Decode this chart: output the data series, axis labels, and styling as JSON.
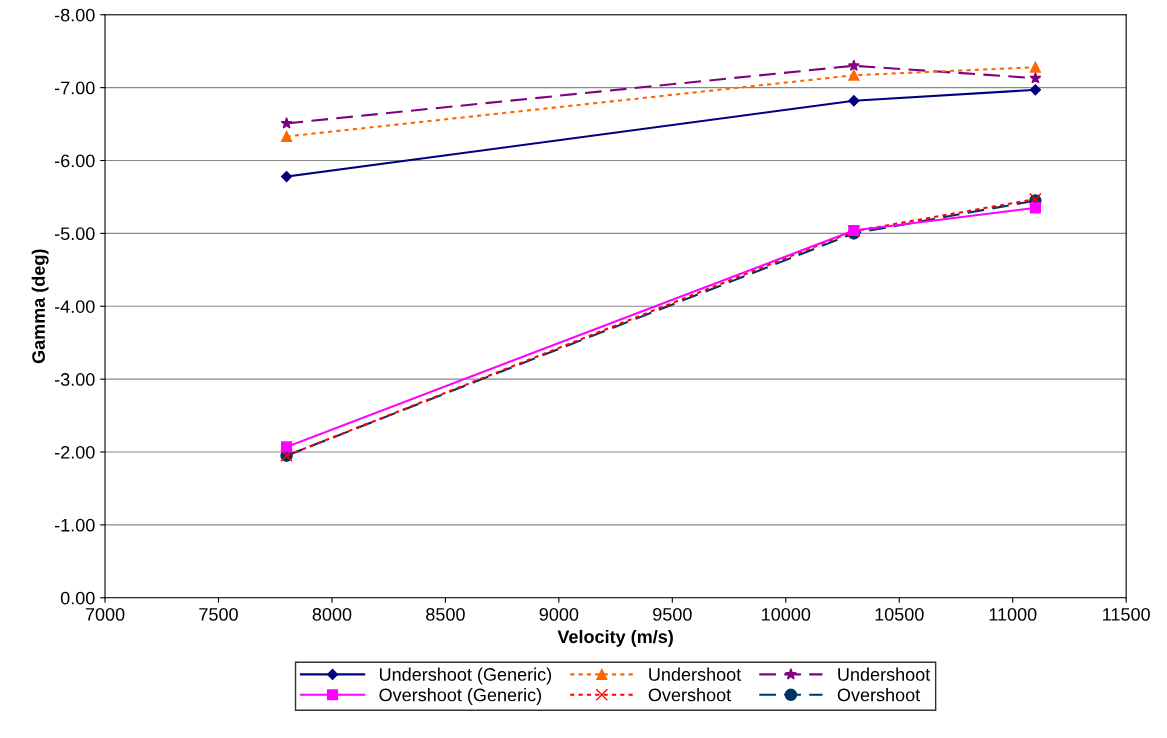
{
  "chart_data": {
    "type": "line",
    "xlabel": "Velocity (m/s)",
    "ylabel": "Gamma (deg)",
    "x": [
      7800,
      10300,
      11100
    ],
    "xlim": [
      7000,
      11500
    ],
    "xticks": [
      7000,
      7500,
      8000,
      8500,
      9000,
      9500,
      10000,
      10500,
      11000,
      11500
    ],
    "ylim": [
      0,
      -8
    ],
    "yticks": [
      {
        "value": 0,
        "label": "0.00"
      },
      {
        "value": -1,
        "label": "-1.00"
      },
      {
        "value": -2,
        "label": "-2.00"
      },
      {
        "value": -3,
        "label": "-3.00"
      },
      {
        "value": -4,
        "label": "-4.00"
      },
      {
        "value": -5,
        "label": "-5.00"
      },
      {
        "value": -6,
        "label": "-6.00"
      },
      {
        "value": -7,
        "label": "-7.00"
      },
      {
        "value": -8,
        "label": "-8.00"
      }
    ],
    "grid": "y",
    "legend": "bottom",
    "series": [
      {
        "name": "Undershoot (Generic)",
        "color": "#000080",
        "values": [
          -5.78,
          -6.82,
          -6.97
        ],
        "marker": "diamond",
        "line_style": "solid"
      },
      {
        "name": "Overshoot (Generic)",
        "color": "#ff00ff",
        "values": [
          -2.07,
          -5.04,
          -5.35
        ],
        "marker": "square",
        "line_style": "solid"
      },
      {
        "name": "Undershoot",
        "color": "#ff6600",
        "values": [
          -6.33,
          -7.17,
          -7.28
        ],
        "marker": "triangle",
        "line_style": "dotted"
      },
      {
        "name": "Overshoot",
        "color": "#ff0000",
        "values": [
          -1.95,
          -5.03,
          -5.47
        ],
        "marker": "cross",
        "line_style": "dotted"
      },
      {
        "name": "Undershoot",
        "color": "#800080",
        "values": [
          -6.51,
          -7.3,
          -7.13
        ],
        "marker": "star",
        "line_style": "dashed"
      },
      {
        "name": "Overshoot",
        "color": "#003366",
        "values": [
          -1.95,
          -5.0,
          -5.45
        ],
        "marker": "circle",
        "line_style": "dashed"
      }
    ]
  }
}
